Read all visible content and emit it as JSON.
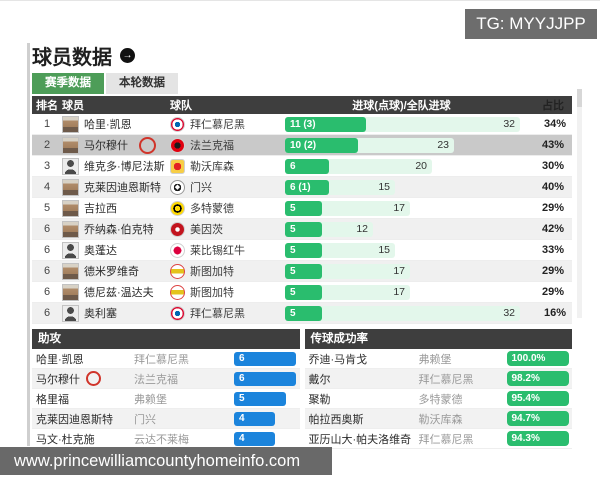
{
  "watermarks": {
    "tg_badge": "TG: MYYJJPP",
    "site_bar": "www.princewilliamcountyhomeinfo.com"
  },
  "header": {
    "title": "球员数据",
    "more_icon_glyph": "→"
  },
  "tabs": [
    {
      "label": "赛季数据",
      "active": true
    },
    {
      "label": "本轮数据",
      "active": false
    }
  ],
  "goals_table": {
    "headers": {
      "rank": "排名",
      "player": "球员",
      "team": "球队",
      "goals": "进球(点球)/全队进球",
      "share": "占比"
    },
    "max_team_goals": 32,
    "rows": [
      {
        "rank": "1",
        "player": "哈里·凯恩",
        "team": "拜仁慕尼黑",
        "logo": "bayern",
        "avatar": "photo",
        "goals": 11,
        "goals_label": "11 (3)",
        "team_goals": 32,
        "share": "34%",
        "selected": false,
        "annotated": false
      },
      {
        "rank": "2",
        "player": "马尔穆什",
        "team": "法兰克福",
        "logo": "frankfurt",
        "avatar": "photo",
        "goals": 10,
        "goals_label": "10 (2)",
        "team_goals": 23,
        "share": "43%",
        "selected": true,
        "annotated": true
      },
      {
        "rank": "3",
        "player": "维克多·博尼法斯",
        "team": "勒沃库森",
        "logo": "leverkusen",
        "avatar": "silhouette",
        "goals": 6,
        "goals_label": "6",
        "team_goals": 20,
        "share": "30%",
        "selected": false,
        "annotated": false
      },
      {
        "rank": "4",
        "player": "克莱因迪恩斯特",
        "team": "门兴",
        "logo": "gladbach",
        "avatar": "photo",
        "goals": 6,
        "goals_label": "6 (1)",
        "team_goals": 15,
        "share": "40%",
        "selected": false,
        "annotated": false
      },
      {
        "rank": "5",
        "player": "吉拉西",
        "team": "多特蒙德",
        "logo": "dortmund",
        "avatar": "photo",
        "goals": 5,
        "goals_label": "5",
        "team_goals": 17,
        "share": "29%",
        "selected": false,
        "annotated": false
      },
      {
        "rank": "6",
        "player": "乔纳森·伯克特",
        "team": "美因茨",
        "logo": "mainz",
        "avatar": "photo",
        "goals": 5,
        "goals_label": "5",
        "team_goals": 12,
        "share": "42%",
        "selected": false,
        "annotated": false
      },
      {
        "rank": "6",
        "player": "奥蓬达",
        "team": "莱比锡红牛",
        "logo": "leipzig",
        "avatar": "silhouette",
        "goals": 5,
        "goals_label": "5",
        "team_goals": 15,
        "share": "33%",
        "selected": false,
        "annotated": false
      },
      {
        "rank": "6",
        "player": "德米罗维奇",
        "team": "斯图加特",
        "logo": "stuttgart",
        "avatar": "photo",
        "goals": 5,
        "goals_label": "5",
        "team_goals": 17,
        "share": "29%",
        "selected": false,
        "annotated": false
      },
      {
        "rank": "6",
        "player": "德尼兹·温达夫",
        "team": "斯图加特",
        "logo": "stuttgart",
        "avatar": "photo",
        "goals": 5,
        "goals_label": "5",
        "team_goals": 17,
        "share": "29%",
        "selected": false,
        "annotated": false
      },
      {
        "rank": "6",
        "player": "奥利塞",
        "team": "拜仁慕尼黑",
        "logo": "bayern",
        "avatar": "silhouette",
        "goals": 5,
        "goals_label": "5",
        "team_goals": 32,
        "share": "16%",
        "selected": false,
        "annotated": false
      }
    ]
  },
  "assists_panel": {
    "title": "助攻",
    "max_value": 6,
    "rows": [
      {
        "player": "哈里·凯恩",
        "team": "拜仁慕尼黑",
        "value": 6,
        "annotated": false
      },
      {
        "player": "马尔穆什",
        "team": "法兰克福",
        "value": 6,
        "annotated": true
      },
      {
        "player": "格里福",
        "team": "弗赖堡",
        "value": 5,
        "annotated": false
      },
      {
        "player": "克莱因迪恩斯特",
        "team": "门兴",
        "value": 4,
        "annotated": false
      },
      {
        "player": "马文·杜克施",
        "team": "云达不莱梅",
        "value": 4,
        "annotated": false
      }
    ]
  },
  "passing_panel": {
    "title": "传球成功率",
    "rows": [
      {
        "player": "乔迪·马肯戈",
        "team": "弗赖堡",
        "value": "100.0%"
      },
      {
        "player": "戴尔",
        "team": "拜仁慕尼黑",
        "value": "98.2%"
      },
      {
        "player": "聚勒",
        "team": "多特蒙德",
        "value": "95.4%"
      },
      {
        "player": "帕拉西奥斯",
        "team": "勒沃库森",
        "value": "94.7%"
      },
      {
        "player": "亚历山大·帕夫洛维奇",
        "team": "拜仁慕尼黑",
        "value": "94.3%"
      }
    ]
  },
  "colors": {
    "accent_green": "#2abd6e",
    "bar_track_green": "#e3f7eb",
    "bar_blue": "#1b84dc",
    "header_dark": "#3e3e3e",
    "tab_active_green": "#4d9d58",
    "selected_row_gray": "#c9c9c9",
    "annotation_red": "#d0342a",
    "watermark_gray": "#6d6d6d"
  }
}
